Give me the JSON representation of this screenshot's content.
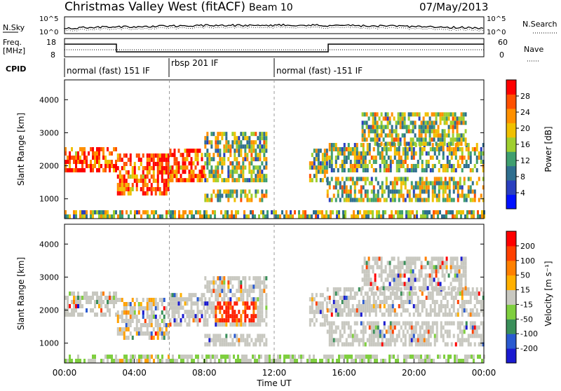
{
  "header": {
    "title": "Christmas Valley West (fitACF)",
    "beam": "Beam 10",
    "date": "07/May/2013"
  },
  "nsky_panel": {
    "left_label": "N.Sky",
    "right_label": "N.Search",
    "ticks": [
      "10^5",
      "10^0"
    ]
  },
  "freq_panel": {
    "left_label": "Freq.",
    "left_unit": "[MHz]",
    "right_label": "Nave",
    "left_ticks": [
      "18",
      "8"
    ],
    "right_ticks": [
      "60",
      "0"
    ]
  },
  "cpid": {
    "label": "CPID",
    "segments": [
      {
        "start_hour": 0,
        "end_hour": 6,
        "label": "normal (fast) 151 IF"
      },
      {
        "start_hour": 6,
        "end_hour": 12,
        "label": "rbsp 201 IF"
      },
      {
        "start_hour": 12,
        "end_hour": 24,
        "label": "normal (fast) -151 IF"
      }
    ]
  },
  "chart_data": [
    {
      "type": "heatmap",
      "name_key": "power",
      "xlabel": "",
      "ylabel": "Slant Range [km]",
      "xlim": [
        0,
        24
      ],
      "ylim": [
        400,
        4600
      ],
      "yticks": [
        1000,
        2000,
        3000,
        4000
      ],
      "colorbar": {
        "label": "Power [dB]",
        "ticks": [
          "4",
          "8",
          "12",
          "16",
          "20",
          "24",
          "28"
        ],
        "colors": [
          "#0010ff",
          "#2a3fbf",
          "#2f6f8f",
          "#3f9f6f",
          "#9fcf2f",
          "#f0c000",
          "#ff9000",
          "#ff5000",
          "#ff0000"
        ]
      }
    },
    {
      "type": "heatmap",
      "name_key": "velocity",
      "xlabel": "Time UT",
      "ylabel": "Slant Range [km]",
      "xlim": [
        0,
        24
      ],
      "ylim": [
        400,
        4600
      ],
      "yticks": [
        1000,
        2000,
        3000,
        4000
      ],
      "xticks": [
        "00:00",
        "04:00",
        "08:00",
        "12:00",
        "16:00",
        "20:00",
        "00:00"
      ],
      "colorbar": {
        "label": "Velocity [m s⁻¹]",
        "ticks": [
          "200",
          "100",
          "50",
          "15",
          "-15",
          "-50",
          "-100",
          "-200"
        ],
        "colors": [
          "#1a1ad0",
          "#2a5ad0",
          "#3a8f5a",
          "#7fcf3f",
          "#c8c8c0",
          "#ffb000",
          "#ff8000",
          "#ff4000",
          "#ff0000"
        ]
      }
    }
  ]
}
